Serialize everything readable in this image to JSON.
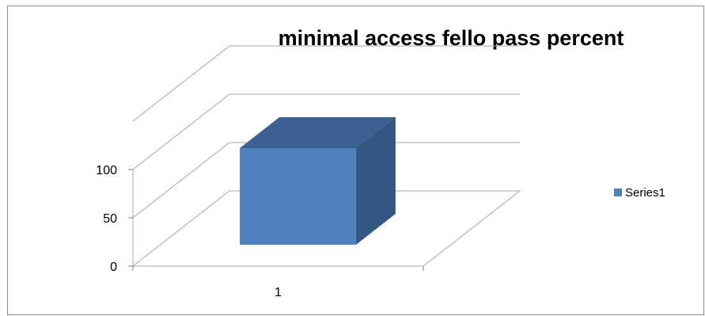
{
  "chart_data": {
    "type": "bar",
    "title": "minimal access fello pass percent",
    "xlabel": "",
    "ylabel": "",
    "categories": [
      "1"
    ],
    "series": [
      {
        "name": "Series1",
        "values": [
          100
        ],
        "color": "#4f81bd"
      }
    ],
    "ylim": [
      0,
      100
    ],
    "yticks": [
      "0",
      "50",
      "100"
    ],
    "grid": true,
    "legend": "right",
    "style": "3d-column"
  }
}
